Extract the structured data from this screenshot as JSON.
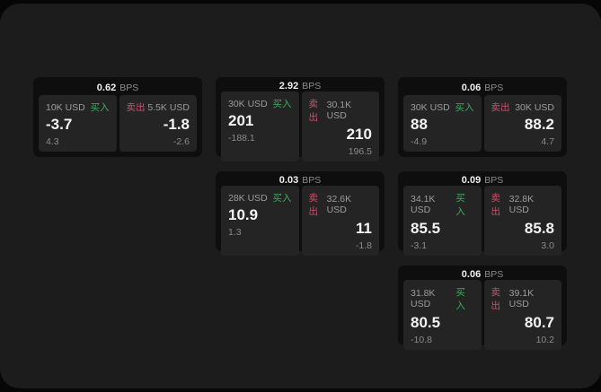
{
  "labels": {
    "bps_unit": "BPS",
    "buy_tag": "买入",
    "sell_tag": "卖出"
  },
  "colors": {
    "buy_green": "#3dab5f",
    "sell_red": "#c9526e",
    "page_bg": "#1c1c1c",
    "card_bg": "#0e0e0e",
    "panel_bg": "#242424"
  },
  "cards": [
    {
      "col": 1,
      "row": 1,
      "bps": "0.62",
      "buy": {
        "size": "10K USD",
        "price": "-3.7",
        "sub": "4.3"
      },
      "sell": {
        "size": "5.5K USD",
        "price": "-1.8",
        "sub": "-2.6"
      }
    },
    {
      "col": 2,
      "row": 1,
      "bps": "2.92",
      "buy": {
        "size": "30K USD",
        "price": "201",
        "sub": "-188.1"
      },
      "sell": {
        "size": "30.1K USD",
        "price": "210",
        "sub": "196.5"
      }
    },
    {
      "col": 3,
      "row": 1,
      "bps": "0.06",
      "buy": {
        "size": "30K USD",
        "price": "88",
        "sub": "-4.9"
      },
      "sell": {
        "size": "30K USD",
        "price": "88.2",
        "sub": "4.7"
      }
    },
    {
      "col": 2,
      "row": 2,
      "bps": "0.03",
      "buy": {
        "size": "28K USD",
        "price": "10.9",
        "sub": "1.3"
      },
      "sell": {
        "size": "32.6K USD",
        "price": "11",
        "sub": "-1.8"
      }
    },
    {
      "col": 3,
      "row": 2,
      "bps": "0.09",
      "buy": {
        "size": "34.1K USD",
        "price": "85.5",
        "sub": "-3.1"
      },
      "sell": {
        "size": "32.8K USD",
        "price": "85.8",
        "sub": "3.0"
      }
    },
    {
      "col": 3,
      "row": 3,
      "bps": "0.06",
      "buy": {
        "size": "31.8K USD",
        "price": "80.5",
        "sub": "-10.8"
      },
      "sell": {
        "size": "39.1K USD",
        "price": "80.7",
        "sub": "10.2"
      }
    }
  ]
}
